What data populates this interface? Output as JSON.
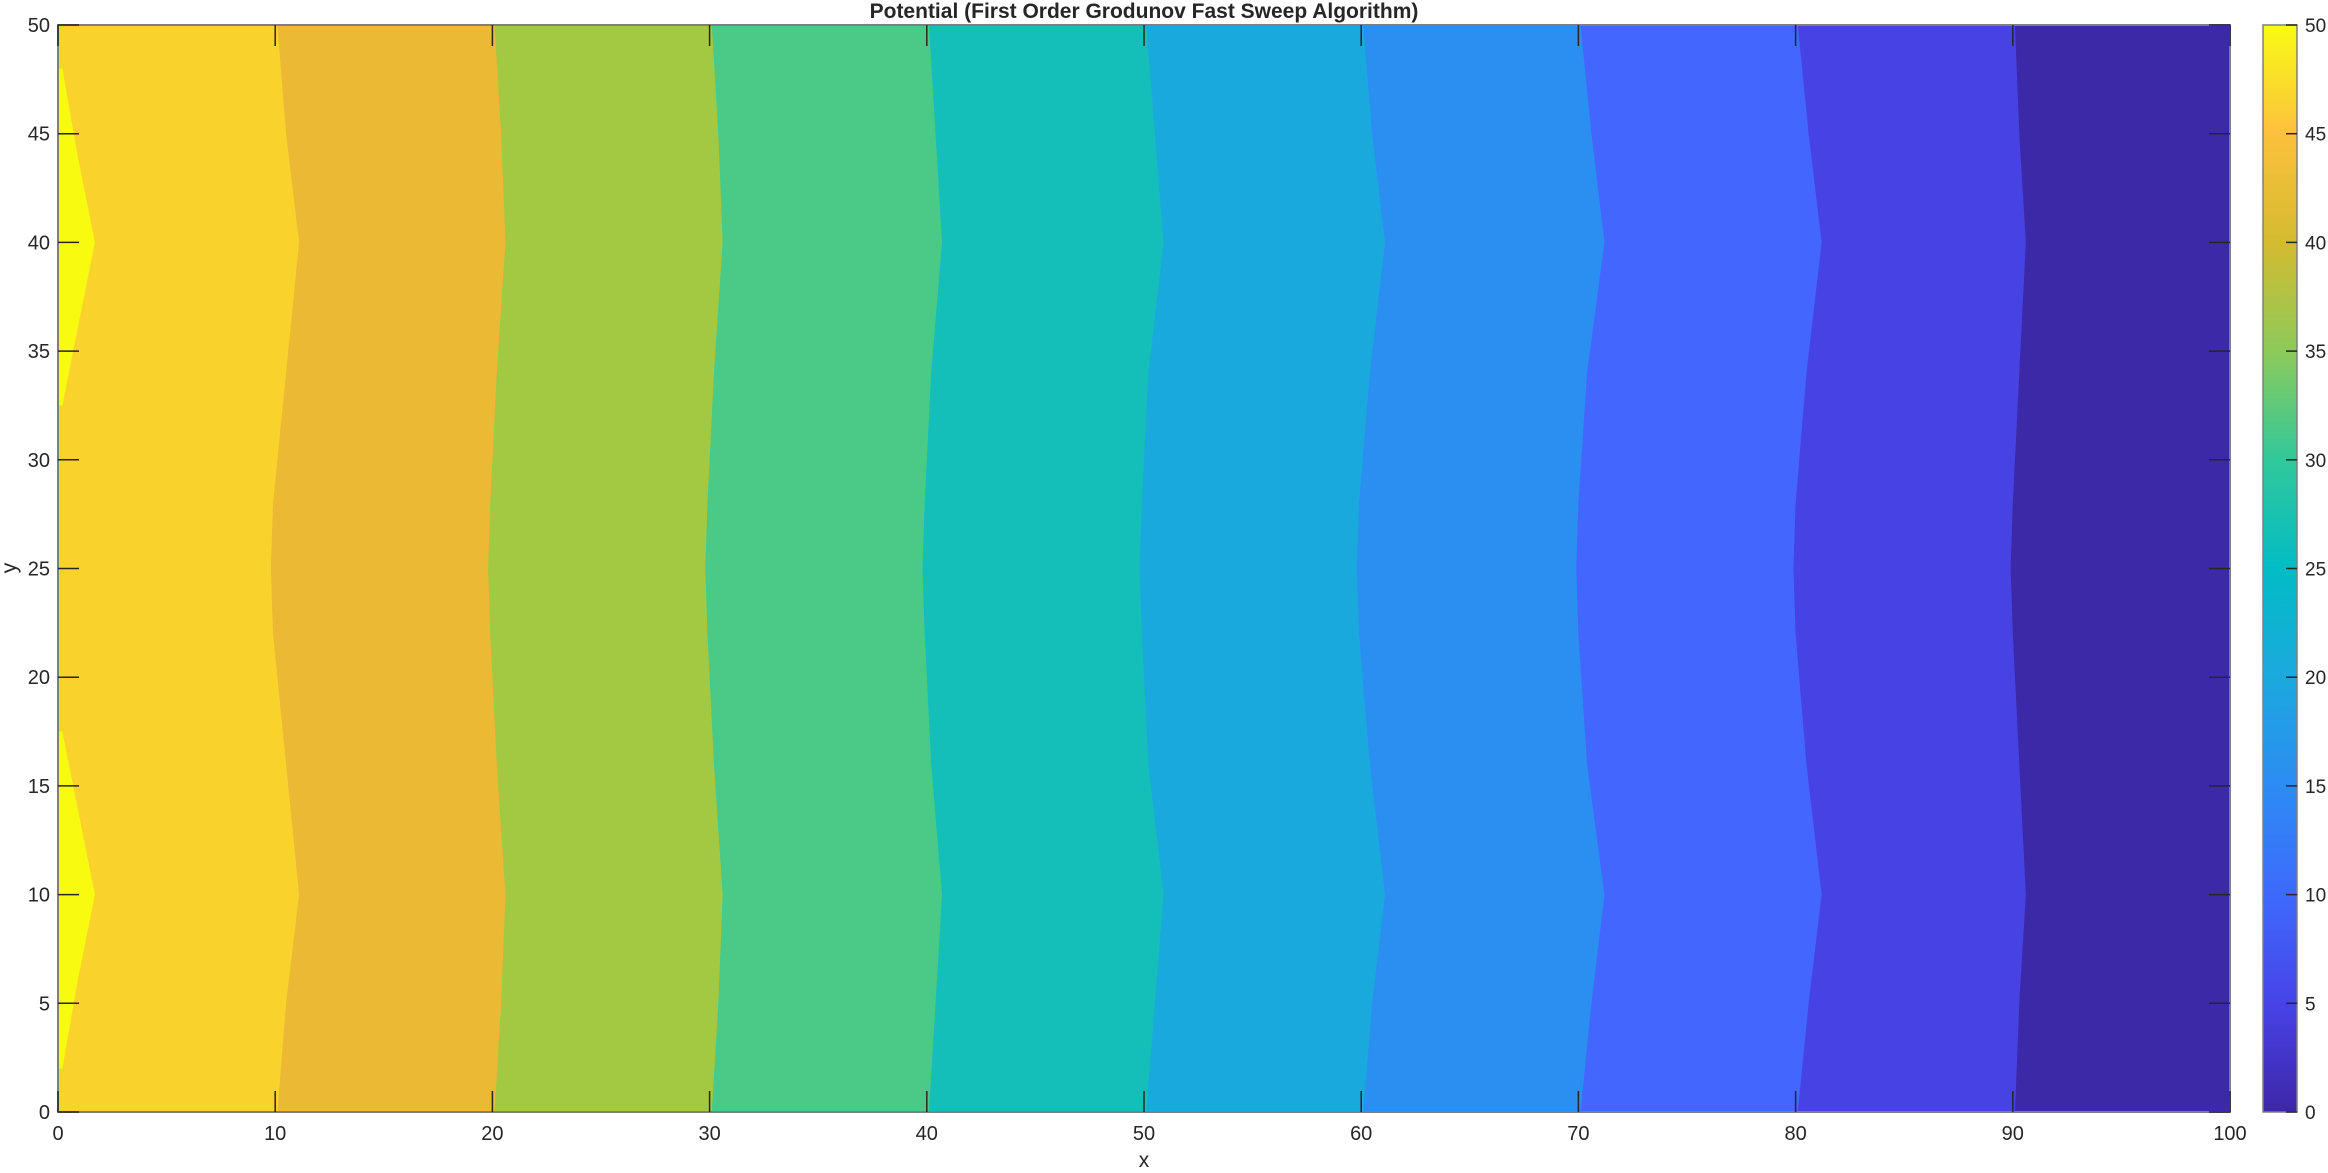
{
  "chart_data": {
    "type": "contour",
    "title": "Potential (First Order Grodunov Fast Sweep Algorithm)",
    "xlabel": "x",
    "ylabel": "y",
    "xlim": [
      0,
      100
    ],
    "ylim": [
      0,
      50
    ],
    "xticks": [
      0,
      10,
      20,
      30,
      40,
      50,
      60,
      70,
      80,
      90,
      100
    ],
    "yticks": [
      0,
      5,
      10,
      15,
      20,
      25,
      30,
      35,
      40,
      45,
      50
    ],
    "grid": false,
    "colorbar": {
      "range": [
        0,
        50
      ],
      "ticks": [
        0,
        5,
        10,
        15,
        20,
        25,
        30,
        35,
        40,
        45,
        50
      ],
      "colormap": "parula"
    },
    "band_colors": [
      "#f9d32b",
      "#ebb933",
      "#a3c942",
      "#49cb87",
      "#14bfb9",
      "#1aa9dc",
      "#2b8ef1",
      "#4366fe",
      "#4642e3",
      "#3c29a8"
    ],
    "peak_color": "#f8fa0f",
    "contour_lines": [
      {
        "level": 45,
        "points": [
          [
            10.1,
            0
          ],
          [
            10.5,
            5
          ],
          [
            11.1,
            10
          ],
          [
            10.5,
            16
          ],
          [
            9.9,
            22
          ],
          [
            9.8,
            25
          ],
          [
            9.9,
            28
          ],
          [
            10.5,
            34
          ],
          [
            11.1,
            40
          ],
          [
            10.5,
            45
          ],
          [
            10.1,
            50
          ]
        ]
      },
      {
        "level": 40,
        "points": [
          [
            20.1,
            0
          ],
          [
            20.4,
            5
          ],
          [
            20.6,
            10
          ],
          [
            20.2,
            16
          ],
          [
            19.9,
            22
          ],
          [
            19.8,
            25
          ],
          [
            19.9,
            28
          ],
          [
            20.2,
            34
          ],
          [
            20.6,
            40
          ],
          [
            20.4,
            45
          ],
          [
            20.1,
            50
          ]
        ]
      },
      {
        "level": 35,
        "points": [
          [
            30.1,
            0
          ],
          [
            30.4,
            5
          ],
          [
            30.6,
            10
          ],
          [
            30.2,
            16
          ],
          [
            29.9,
            22
          ],
          [
            29.8,
            25
          ],
          [
            29.9,
            28
          ],
          [
            30.2,
            34
          ],
          [
            30.6,
            40
          ],
          [
            30.4,
            45
          ],
          [
            30.1,
            50
          ]
        ]
      },
      {
        "level": 30,
        "points": [
          [
            40.1,
            0
          ],
          [
            40.4,
            5
          ],
          [
            40.7,
            10
          ],
          [
            40.2,
            16
          ],
          [
            39.9,
            22
          ],
          [
            39.8,
            25
          ],
          [
            39.9,
            28
          ],
          [
            40.2,
            34
          ],
          [
            40.7,
            40
          ],
          [
            40.4,
            45
          ],
          [
            40.1,
            50
          ]
        ]
      },
      {
        "level": 25,
        "points": [
          [
            50.1,
            0
          ],
          [
            50.5,
            5
          ],
          [
            50.9,
            10
          ],
          [
            50.2,
            16
          ],
          [
            49.9,
            22
          ],
          [
            49.8,
            25
          ],
          [
            49.9,
            28
          ],
          [
            50.2,
            34
          ],
          [
            50.9,
            40
          ],
          [
            50.5,
            45
          ],
          [
            50.1,
            50
          ]
        ]
      },
      {
        "level": 20,
        "points": [
          [
            60.1,
            0
          ],
          [
            60.5,
            5
          ],
          [
            61.1,
            10
          ],
          [
            60.4,
            16
          ],
          [
            59.9,
            22
          ],
          [
            59.8,
            25
          ],
          [
            59.9,
            28
          ],
          [
            60.4,
            34
          ],
          [
            61.1,
            40
          ],
          [
            60.5,
            45
          ],
          [
            60.1,
            50
          ]
        ]
      },
      {
        "level": 15,
        "points": [
          [
            70.1,
            0
          ],
          [
            70.6,
            5
          ],
          [
            71.2,
            10
          ],
          [
            70.4,
            16
          ],
          [
            70.0,
            22
          ],
          [
            69.9,
            25
          ],
          [
            70.0,
            28
          ],
          [
            70.4,
            34
          ],
          [
            71.2,
            40
          ],
          [
            70.6,
            45
          ],
          [
            70.1,
            50
          ]
        ]
      },
      {
        "level": 10,
        "points": [
          [
            80.1,
            0
          ],
          [
            80.6,
            5
          ],
          [
            81.2,
            10
          ],
          [
            80.5,
            16
          ],
          [
            80.0,
            22
          ],
          [
            79.9,
            25
          ],
          [
            80.0,
            28
          ],
          [
            80.5,
            34
          ],
          [
            81.2,
            40
          ],
          [
            80.6,
            45
          ],
          [
            80.1,
            50
          ]
        ]
      },
      {
        "level": 5,
        "points": [
          [
            90.1,
            0
          ],
          [
            90.3,
            5
          ],
          [
            90.6,
            10
          ],
          [
            90.3,
            16
          ],
          [
            90.0,
            22
          ],
          [
            89.9,
            25
          ],
          [
            90.0,
            28
          ],
          [
            90.3,
            34
          ],
          [
            90.6,
            40
          ],
          [
            90.3,
            45
          ],
          [
            90.1,
            50
          ]
        ]
      }
    ],
    "peak_regions": [
      [
        [
          0,
          2
        ],
        [
          0.2,
          2
        ],
        [
          0.9,
          6
        ],
        [
          1.7,
          10
        ],
        [
          0.9,
          14
        ],
        [
          0.2,
          17.5
        ],
        [
          0,
          17.5
        ]
      ],
      [
        [
          0,
          32.5
        ],
        [
          0.2,
          32.5
        ],
        [
          0.9,
          36
        ],
        [
          1.7,
          40
        ],
        [
          0.9,
          44
        ],
        [
          0.2,
          48
        ],
        [
          0,
          48
        ]
      ]
    ]
  }
}
